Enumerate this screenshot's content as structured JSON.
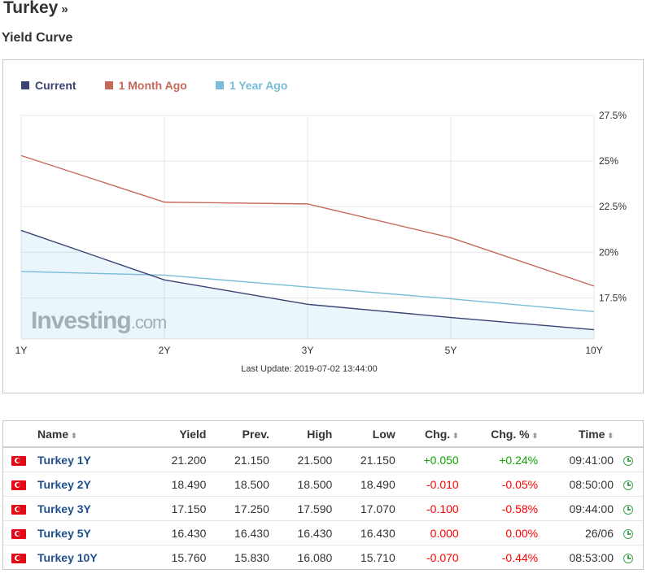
{
  "page": {
    "title": "Turkey",
    "title_suffix": "»",
    "section_title": "Yield Curve"
  },
  "chart_data": {
    "type": "line",
    "categories": [
      "1Y",
      "2Y",
      "3Y",
      "5Y",
      "10Y"
    ],
    "series": [
      {
        "name": "Current",
        "color": "#3a4372",
        "values": [
          21.2,
          18.49,
          17.15,
          16.43,
          15.76
        ]
      },
      {
        "name": "1 Month Ago",
        "color": "#c4695a",
        "values": [
          25.3,
          22.75,
          22.65,
          20.8,
          18.15
        ]
      },
      {
        "name": "1 Year Ago",
        "color": "#79bcd9",
        "values": [
          18.95,
          18.75,
          18.1,
          17.45,
          16.75
        ]
      }
    ],
    "ylim": [
      15.25,
      27.5
    ],
    "yticks": [
      17.5,
      20,
      22.5,
      25,
      27.5
    ],
    "ytick_labels": [
      "17.5%",
      "20%",
      "22.5%",
      "25%",
      "27.5%"
    ],
    "y_axis_side": "right",
    "grid": true,
    "legend_position": "top-left",
    "watermark": "Investing.com",
    "footer": "Last Update: 2019-07-02 13:44:00"
  },
  "table": {
    "headers": {
      "name": "Name",
      "yield": "Yield",
      "prev": "Prev.",
      "high": "High",
      "low": "Low",
      "chg": "Chg.",
      "chg_pct": "Chg. %",
      "time": "Time"
    },
    "sort_icon": "sort-arrows-icon",
    "rows": [
      {
        "name": "Turkey 1Y",
        "yield": "21.200",
        "prev": "21.150",
        "high": "21.500",
        "low": "21.150",
        "chg": "+0.050",
        "chg_pct": "+0.24%",
        "time": "09:41:00",
        "direction": "pos"
      },
      {
        "name": "Turkey 2Y",
        "yield": "18.490",
        "prev": "18.500",
        "high": "18.500",
        "low": "18.490",
        "chg": "-0.010",
        "chg_pct": "-0.05%",
        "time": "08:50:00",
        "direction": "neg"
      },
      {
        "name": "Turkey 3Y",
        "yield": "17.150",
        "prev": "17.250",
        "high": "17.590",
        "low": "17.070",
        "chg": "-0.100",
        "chg_pct": "-0.58%",
        "time": "09:44:00",
        "direction": "neg"
      },
      {
        "name": "Turkey 5Y",
        "yield": "16.430",
        "prev": "16.430",
        "high": "16.430",
        "low": "16.430",
        "chg": "0.000",
        "chg_pct": "0.00%",
        "time": "26/06",
        "direction": "neg"
      },
      {
        "name": "Turkey 10Y",
        "yield": "15.760",
        "prev": "15.830",
        "high": "16.080",
        "low": "15.710",
        "chg": "-0.070",
        "chg_pct": "-0.44%",
        "time": "08:53:00",
        "direction": "neg"
      }
    ],
    "colors": {
      "positive": "#0ea600",
      "negative": "#ff0000",
      "link": "#1e4f8d",
      "clock": "#3fa34d",
      "flag": "#e30a17"
    }
  }
}
